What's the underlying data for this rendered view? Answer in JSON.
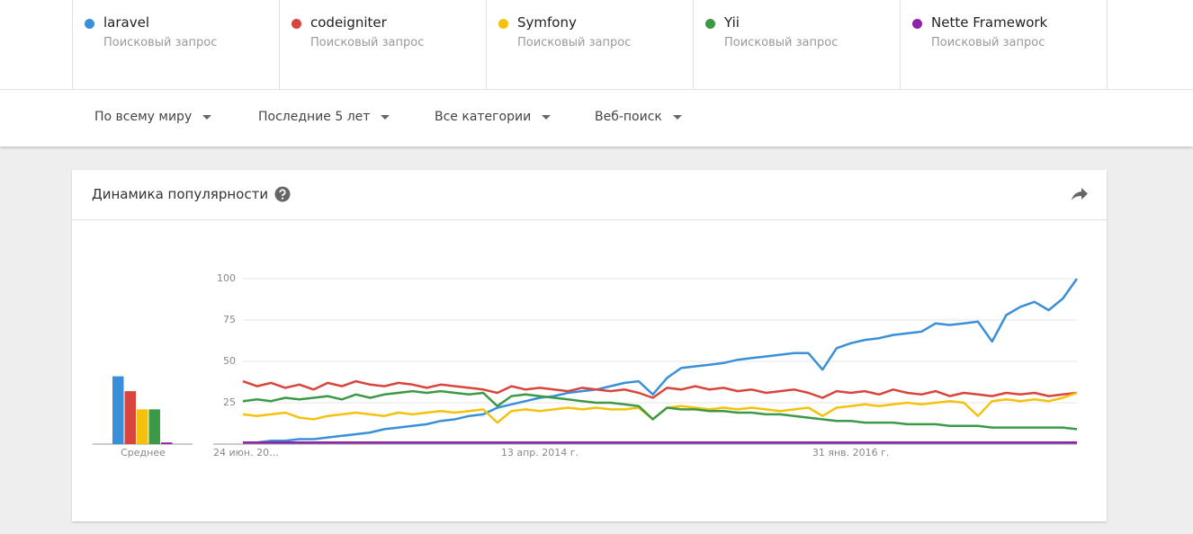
{
  "header": {
    "term_subtitles": [
      "Поисковый запрос",
      "Поисковый запрос",
      "Поисковый запрос",
      "Поисковый запрос",
      "Поисковый запрос"
    ]
  },
  "filters": [
    "По всему миру",
    "Последние 5 лет",
    "Все категории",
    "Веб-поиск"
  ],
  "card": {
    "title": "Динамика популярности"
  },
  "chart_data": [
    {
      "type": "line",
      "categories": [
        "24 июн. 20…",
        null,
        null,
        null,
        null,
        null,
        null,
        null,
        null,
        null,
        null,
        null,
        null,
        null,
        null,
        null,
        null,
        null,
        null,
        null,
        null,
        "13 апр. 2014 г.",
        null,
        null,
        null,
        null,
        null,
        null,
        null,
        null,
        null,
        null,
        null,
        null,
        null,
        null,
        null,
        null,
        null,
        null,
        null,
        null,
        null,
        "31 янв. 2016 г.",
        null,
        null,
        null,
        null,
        null,
        null,
        null,
        null,
        null,
        null,
        null,
        null,
        null,
        null,
        null,
        null
      ],
      "ylim": [
        0,
        100
      ],
      "yticks": [
        25,
        50,
        75,
        100
      ],
      "grid": true,
      "series": [
        {
          "name": "laravel",
          "color": "#3a8fd9",
          "values": [
            1,
            1,
            2,
            2,
            3,
            3,
            4,
            5,
            6,
            7,
            9,
            10,
            11,
            12,
            14,
            15,
            17,
            18,
            22,
            24,
            26,
            28,
            29,
            31,
            32,
            33,
            35,
            37,
            38,
            30,
            40,
            46,
            47,
            48,
            49,
            51,
            52,
            53,
            54,
            55,
            55,
            45,
            58,
            61,
            63,
            64,
            66,
            67,
            68,
            73,
            72,
            73,
            74,
            62,
            78,
            83,
            86,
            81,
            88,
            100
          ]
        },
        {
          "name": "codeigniter",
          "color": "#d9453d",
          "values": [
            38,
            35,
            37,
            34,
            36,
            33,
            37,
            35,
            38,
            36,
            35,
            37,
            36,
            34,
            36,
            35,
            34,
            33,
            31,
            35,
            33,
            34,
            33,
            32,
            34,
            33,
            32,
            33,
            31,
            28,
            34,
            33,
            35,
            33,
            34,
            32,
            33,
            31,
            32,
            33,
            31,
            28,
            32,
            31,
            32,
            30,
            33,
            31,
            30,
            32,
            29,
            31,
            30,
            29,
            31,
            30,
            31,
            29,
            30,
            31
          ]
        },
        {
          "name": "Symfony",
          "color": "#f4c20d",
          "values": [
            18,
            17,
            18,
            19,
            16,
            15,
            17,
            18,
            19,
            18,
            17,
            19,
            18,
            19,
            20,
            19,
            20,
            21,
            13,
            20,
            21,
            20,
            21,
            22,
            21,
            22,
            21,
            21,
            22,
            15,
            22,
            23,
            22,
            21,
            22,
            21,
            22,
            21,
            20,
            21,
            22,
            17,
            22,
            23,
            24,
            23,
            24,
            25,
            24,
            25,
            26,
            25,
            17,
            26,
            27,
            26,
            27,
            26,
            28,
            31
          ]
        },
        {
          "name": "Yii",
          "color": "#3c9a46",
          "values": [
            26,
            27,
            26,
            28,
            27,
            28,
            29,
            27,
            30,
            28,
            30,
            31,
            32,
            31,
            32,
            31,
            30,
            31,
            23,
            29,
            30,
            29,
            28,
            27,
            26,
            25,
            25,
            24,
            23,
            15,
            22,
            21,
            21,
            20,
            20,
            19,
            19,
            18,
            18,
            17,
            16,
            15,
            14,
            14,
            13,
            13,
            13,
            12,
            12,
            12,
            11,
            11,
            11,
            10,
            10,
            10,
            10,
            10,
            10,
            9
          ]
        },
        {
          "name": "Nette Framework",
          "color": "#8e24aa",
          "values": [
            1,
            1,
            1,
            1,
            1,
            1,
            1,
            1,
            1,
            1,
            1,
            1,
            1,
            1,
            1,
            1,
            1,
            1,
            1,
            1,
            1,
            1,
            1,
            1,
            1,
            1,
            1,
            1,
            1,
            1,
            1,
            1,
            1,
            1,
            1,
            1,
            1,
            1,
            1,
            1,
            1,
            1,
            1,
            1,
            1,
            1,
            1,
            1,
            1,
            1,
            1,
            1,
            1,
            1,
            1,
            1,
            1,
            1,
            1,
            1
          ]
        }
      ]
    },
    {
      "type": "bar",
      "x_label": "Среднее",
      "ylim": [
        0,
        100
      ],
      "values": [
        41,
        32,
        21,
        21,
        1
      ],
      "colors": [
        "#3a8fd9",
        "#d9453d",
        "#f4c20d",
        "#3c9a46",
        "#8e24aa"
      ]
    }
  ]
}
